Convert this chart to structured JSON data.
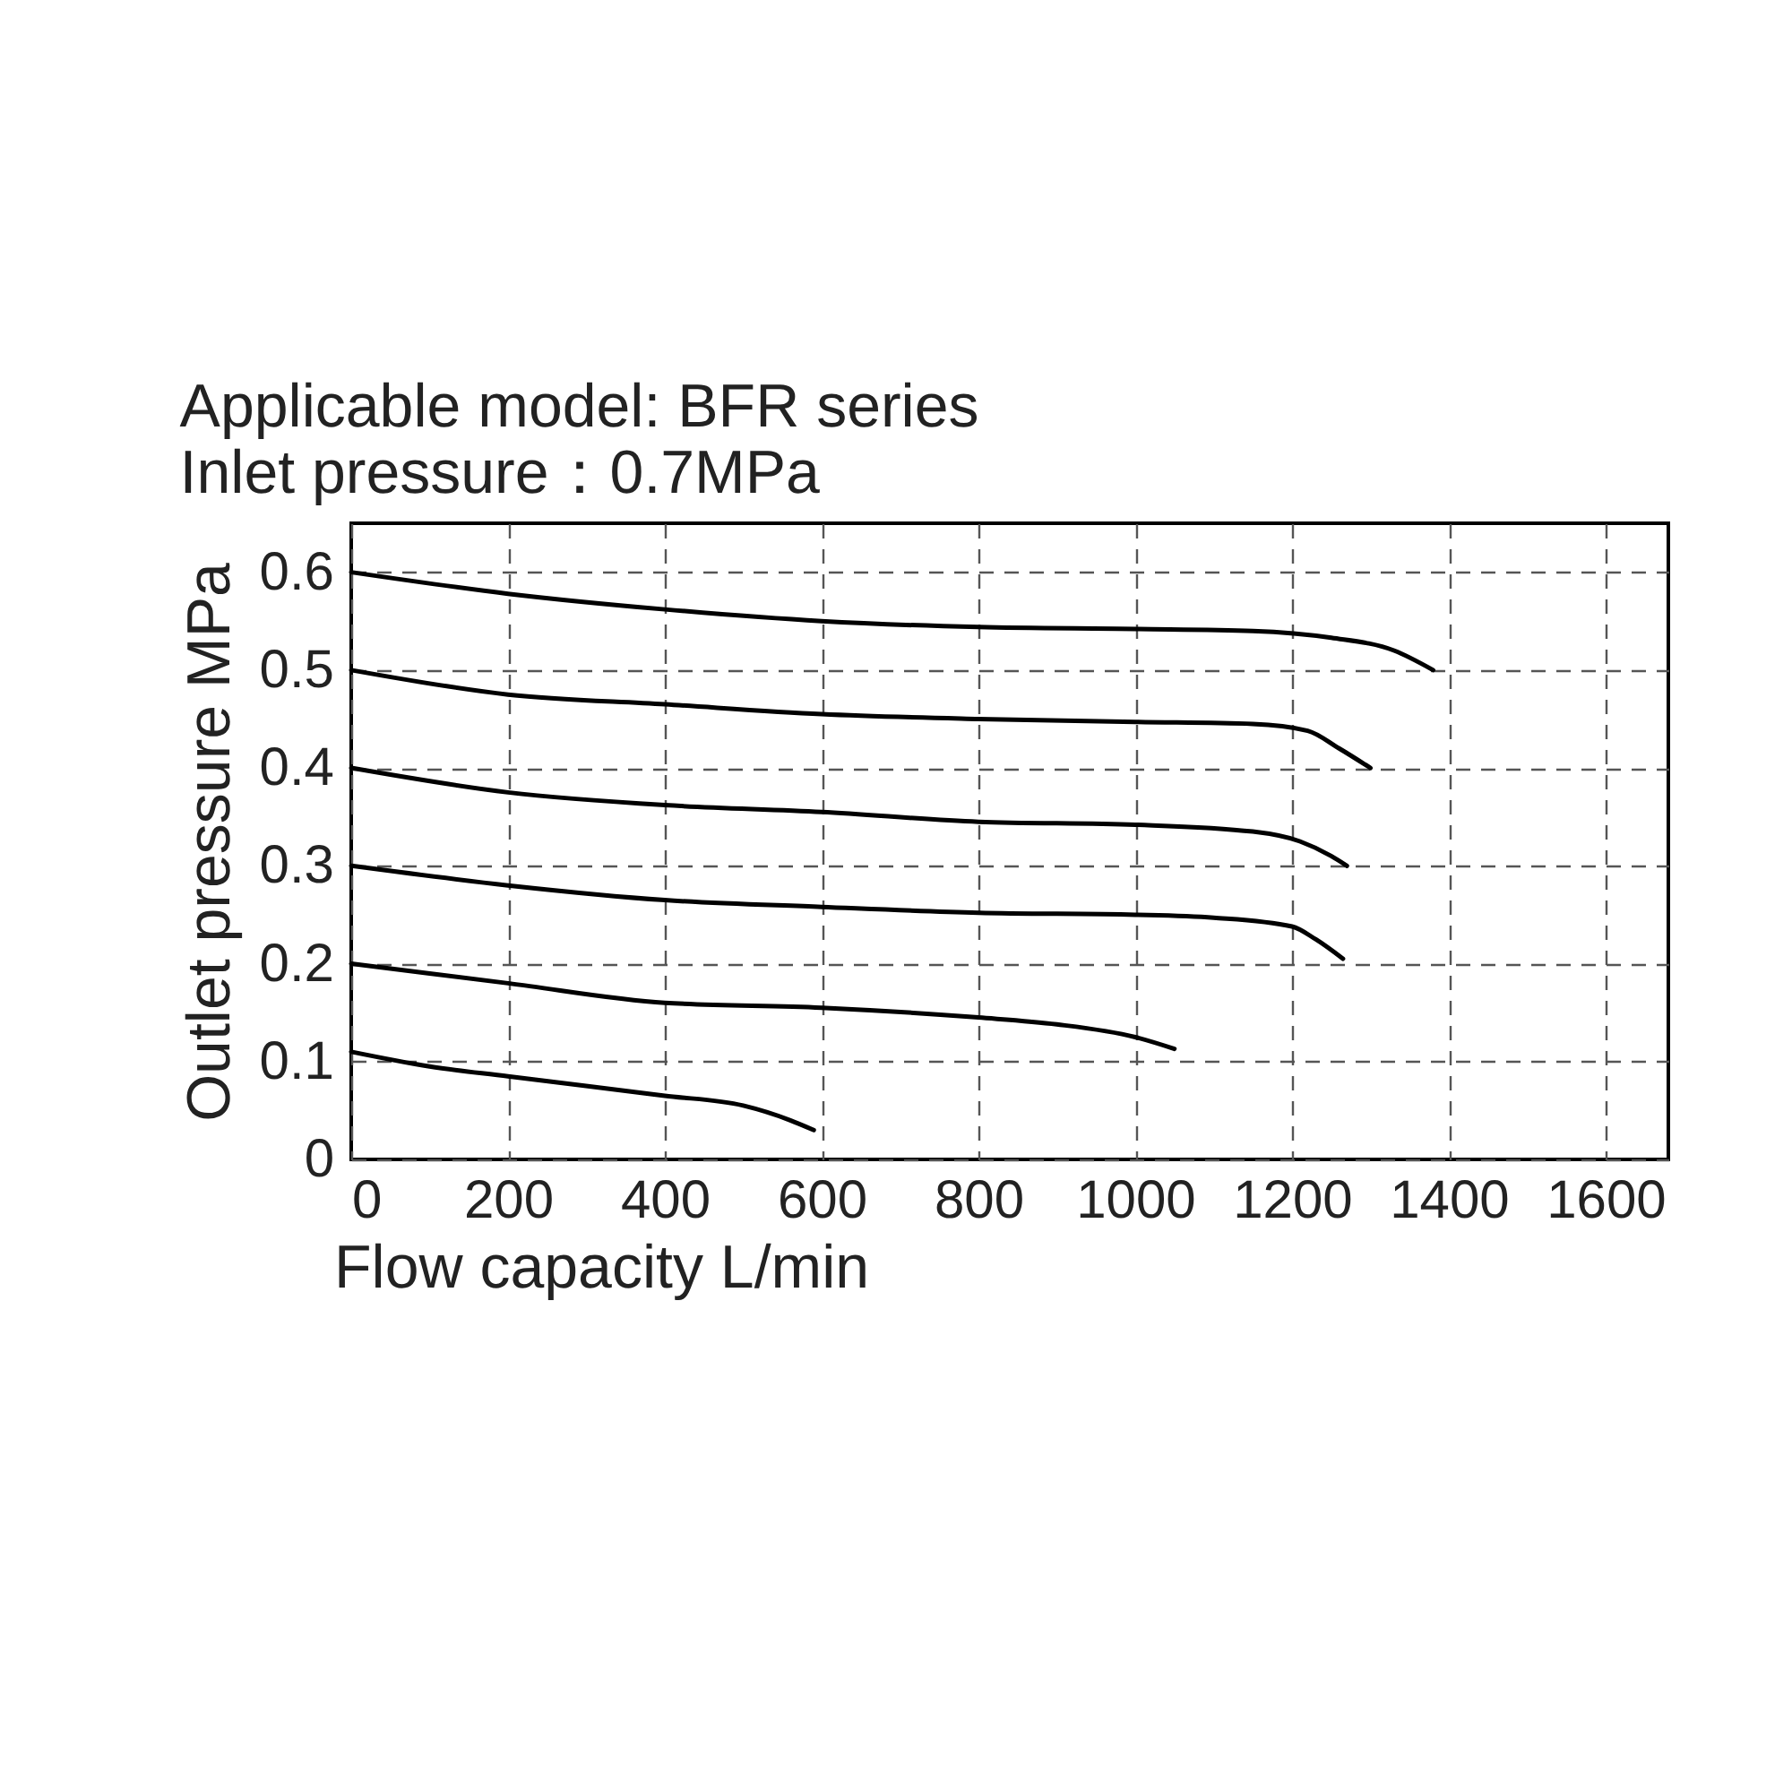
{
  "chart_data": {
    "type": "line",
    "title": "Applicable model: BFR series",
    "subtitle": "Inlet pressure：0.7MPa",
    "xlabel": "Flow capacity      L/min",
    "ylabel": "Outlet pressure      MPa",
    "xlim": [
      0,
      1680
    ],
    "ylim": [
      0,
      0.65
    ],
    "xticks": [
      0,
      200,
      400,
      600,
      800,
      1000,
      1200,
      1400,
      1600
    ],
    "yticks": [
      0,
      0.1,
      0.2,
      0.3,
      0.4,
      0.5,
      0.6
    ],
    "grid": true,
    "legend": false,
    "marker": "none",
    "line_style": "solid",
    "series": [
      {
        "color": "#000000",
        "x": [
          0,
          200,
          400,
          600,
          800,
          1000,
          1150,
          1250,
          1330,
          1380
        ],
        "values": [
          0.6,
          0.578,
          0.562,
          0.55,
          0.544,
          0.542,
          0.54,
          0.533,
          0.52,
          0.5
        ]
      },
      {
        "color": "#000000",
        "x": [
          0,
          200,
          400,
          600,
          800,
          1000,
          1150,
          1220,
          1260,
          1300
        ],
        "values": [
          0.5,
          0.475,
          0.465,
          0.455,
          0.45,
          0.447,
          0.445,
          0.438,
          0.42,
          0.4
        ]
      },
      {
        "color": "#000000",
        "x": [
          0,
          200,
          400,
          600,
          800,
          1000,
          1150,
          1210,
          1250,
          1270
        ],
        "values": [
          0.4,
          0.375,
          0.362,
          0.355,
          0.345,
          0.342,
          0.335,
          0.325,
          0.31,
          0.3
        ]
      },
      {
        "color": "#000000",
        "x": [
          0,
          200,
          400,
          600,
          800,
          1000,
          1100,
          1200,
          1230,
          1265
        ],
        "values": [
          0.3,
          0.28,
          0.265,
          0.258,
          0.252,
          0.25,
          0.247,
          0.238,
          0.225,
          0.205
        ]
      },
      {
        "color": "#000000",
        "x": [
          0,
          200,
          400,
          600,
          800,
          900,
          1000,
          1050
        ],
        "values": [
          0.2,
          0.18,
          0.16,
          0.155,
          0.145,
          0.138,
          0.125,
          0.113
        ]
      },
      {
        "color": "#000000",
        "x": [
          0,
          100,
          200,
          400,
          500,
          560,
          590
        ],
        "values": [
          0.11,
          0.095,
          0.085,
          0.065,
          0.055,
          0.04,
          0.03
        ]
      }
    ]
  }
}
